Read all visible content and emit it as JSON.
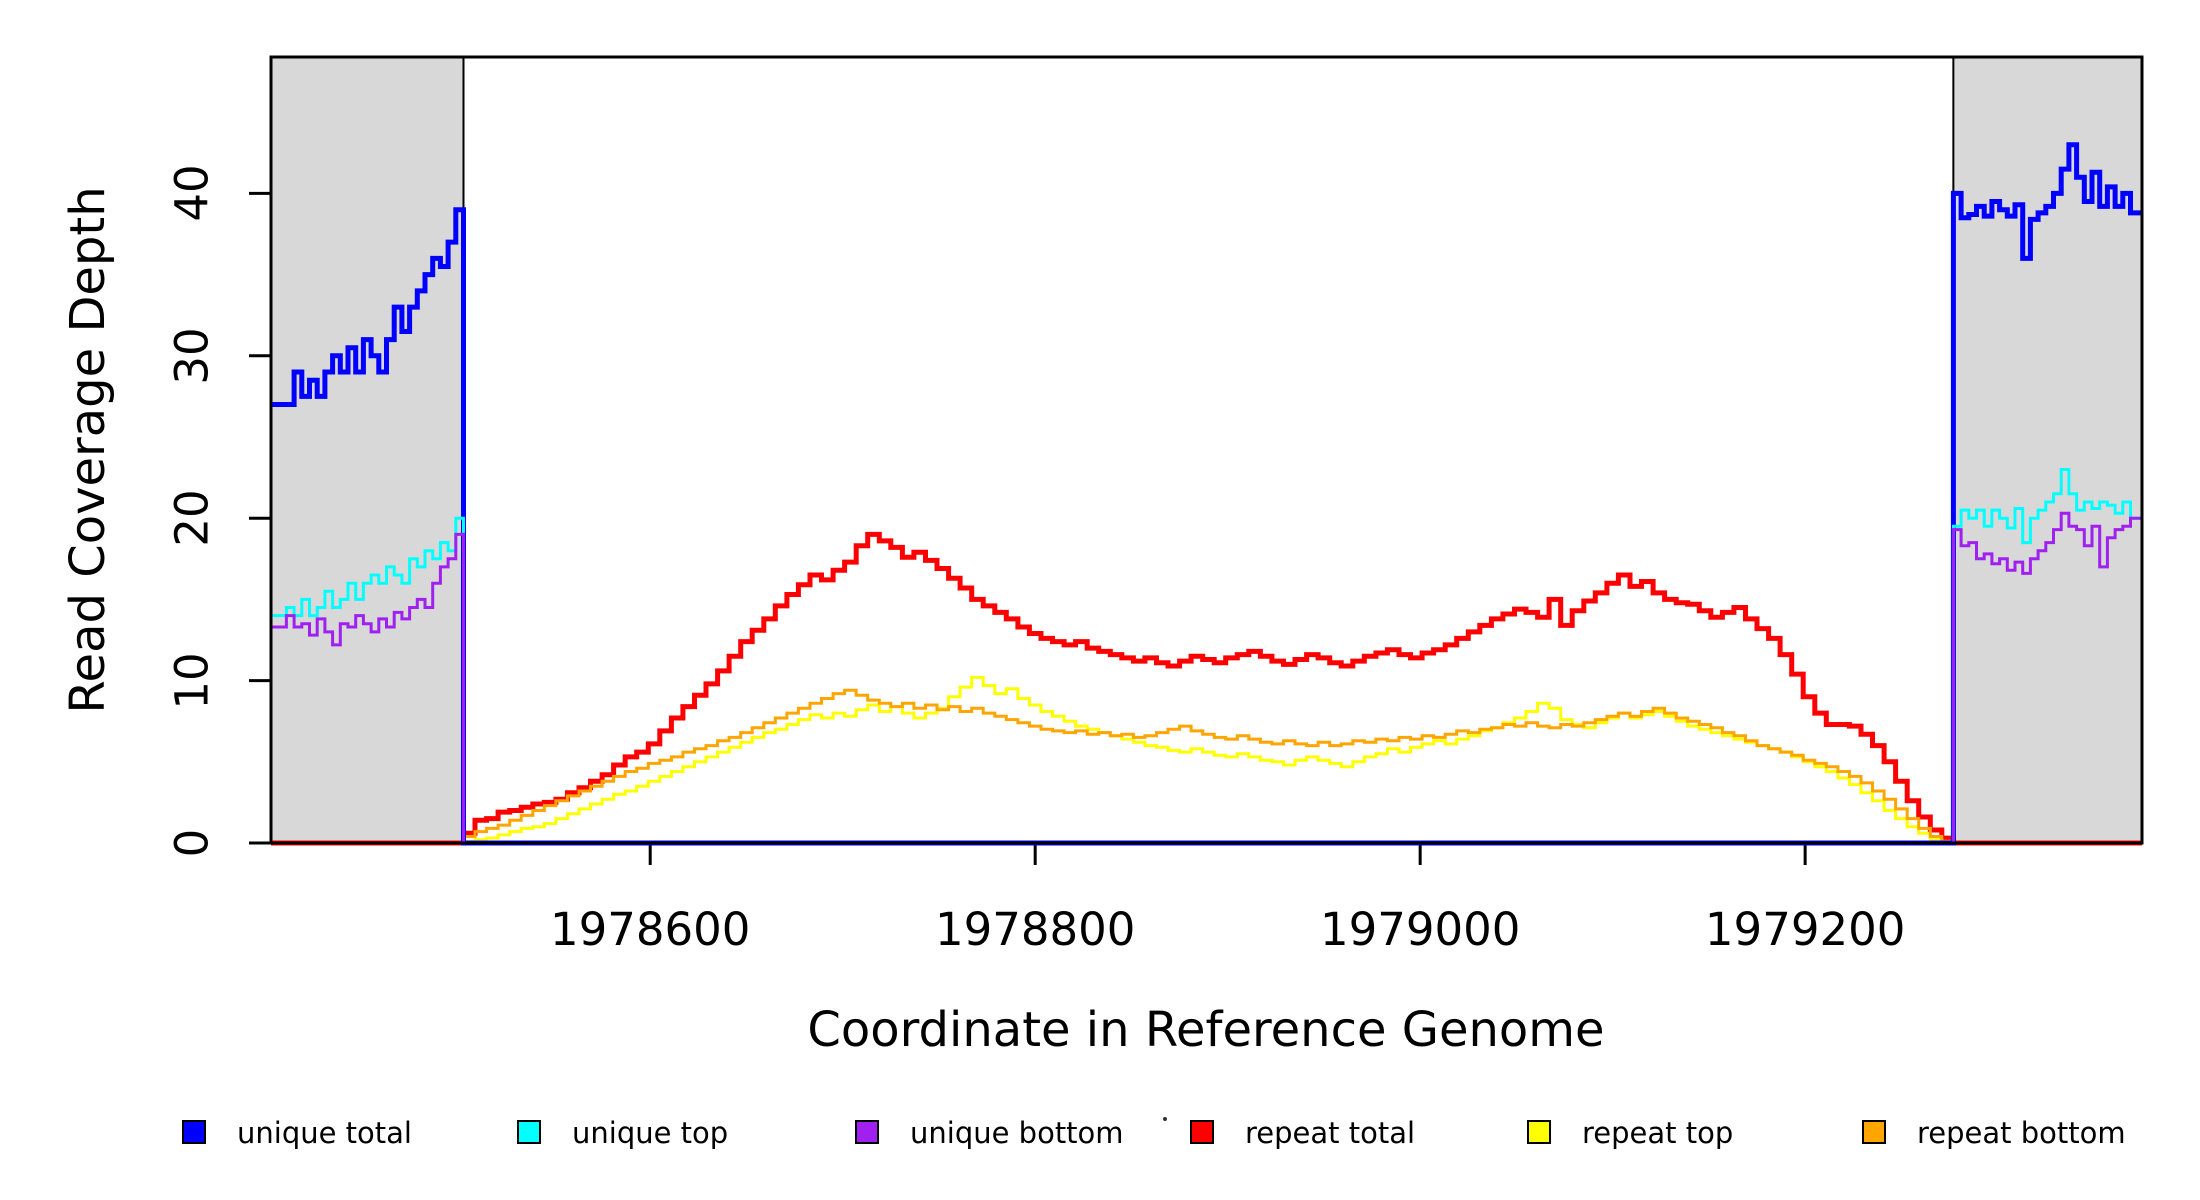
{
  "chart_data": {
    "type": "step-line",
    "title": "",
    "xlabel": "Coordinate in Reference Genome",
    "ylabel": "Read Coverage Depth",
    "xlim": [
      1978403,
      1979375
    ],
    "ylim": [
      0,
      48.4
    ],
    "x_ticks": [
      1978600,
      1978800,
      1979000,
      1979200
    ],
    "y_ticks": [
      0,
      10,
      20,
      30,
      40
    ],
    "grid": false,
    "legend_position": "bottom",
    "background": "#ffffff",
    "shaded_regions": [
      {
        "name": "unique-flank-left",
        "x0": 1978403,
        "x1": 1978503,
        "fill": "#D8D8D8",
        "border": "#000000"
      },
      {
        "name": "unique-flank-right",
        "x0": 1979277,
        "x1": 1979375,
        "fill": "#D8D8D8",
        "border": "#000000"
      }
    ],
    "series": [
      {
        "name": "repeat total",
        "color": "#FF0000",
        "width": 5,
        "segments": [
          {
            "x0": 1978403,
            "dx": 1,
            "values": [
              0
            ]
          },
          {
            "x0": 1978503,
            "dx": 6,
            "values": [
              0.6,
              1.4,
              1.5,
              1.9,
              2.0,
              2.2,
              2.4,
              2.5,
              2.7,
              3.1,
              3.4,
              3.8,
              4.2,
              4.8,
              5.3,
              5.6,
              6.1,
              6.9,
              7.7,
              8.4,
              9.1,
              9.8,
              10.6,
              11.5,
              12.4,
              13.1,
              13.8,
              14.6,
              15.3,
              15.9,
              16.5,
              16.2,
              16.8,
              17.3,
              18.3,
              19.0,
              18.6,
              18.2,
              17.6,
              17.9,
              17.4,
              16.9,
              16.3,
              15.7,
              15.0,
              14.6,
              14.2,
              13.8,
              13.3,
              12.9,
              12.6,
              12.4,
              12.2,
              12.4,
              12.0,
              11.8,
              11.6,
              11.4,
              11.2,
              11.4,
              11.1,
              10.9,
              11.2,
              11.5,
              11.3,
              11.1,
              11.4,
              11.6,
              11.8,
              11.5,
              11.2,
              11.0,
              11.3,
              11.6,
              11.4,
              11.1,
              10.9,
              11.2,
              11.5,
              11.7,
              11.9,
              11.6,
              11.4,
              11.7,
              11.9,
              12.2,
              12.6,
              13.0,
              13.4,
              13.8,
              14.1,
              14.4,
              14.2,
              13.9,
              15.0,
              13.4,
              14.3,
              14.9,
              15.4,
              16.0,
              16.5,
              15.8,
              16.1,
              15.4,
              15.0,
              14.8,
              14.7,
              14.3,
              13.9,
              14.2,
              14.5,
              13.8,
              13.2,
              12.6,
              11.6,
              10.4,
              9.0,
              8.0,
              7.3,
              7.3,
              7.2,
              6.7,
              6.0,
              5.0,
              3.8,
              2.6,
              1.6,
              0.8,
              0.3
            ]
          },
          {
            "x0": 1979277,
            "dx": 1,
            "values": [
              0
            ]
          }
        ]
      },
      {
        "name": "repeat top",
        "color": "#FFFF00",
        "width": 3,
        "segments": [
          {
            "x0": 1978403,
            "dx": 1,
            "values": [
              0
            ]
          },
          {
            "x0": 1978503,
            "dx": 6,
            "values": [
              0.1,
              0.2,
              0.3,
              0.5,
              0.7,
              0.9,
              1.0,
              1.2,
              1.5,
              1.8,
              2.1,
              2.4,
              2.7,
              3.0,
              3.2,
              3.5,
              3.8,
              4.1,
              4.4,
              4.7,
              5.0,
              5.3,
              5.6,
              5.9,
              6.2,
              6.5,
              6.8,
              7.0,
              7.3,
              7.6,
              7.9,
              7.7,
              8.0,
              7.8,
              8.2,
              8.5,
              8.1,
              8.4,
              8.0,
              7.7,
              8.0,
              8.3,
              9.0,
              9.6,
              10.2,
              9.7,
              9.2,
              9.5,
              8.9,
              8.5,
              8.1,
              7.8,
              7.5,
              7.2,
              7.0,
              6.8,
              6.6,
              6.4,
              6.2,
              6.0,
              5.9,
              5.7,
              5.6,
              5.8,
              5.6,
              5.4,
              5.3,
              5.5,
              5.3,
              5.1,
              5.0,
              4.8,
              5.1,
              5.3,
              5.1,
              4.9,
              4.7,
              5.0,
              5.3,
              5.5,
              5.8,
              5.6,
              5.9,
              6.1,
              6.3,
              6.1,
              6.4,
              6.6,
              6.9,
              7.1,
              7.4,
              7.7,
              8.1,
              8.6,
              8.3,
              7.6,
              7.3,
              7.1,
              7.4,
              7.7,
              8.0,
              7.7,
              7.9,
              8.1,
              7.8,
              7.5,
              7.2,
              7.0,
              6.8,
              6.6,
              6.4,
              6.2,
              6.0,
              5.8,
              5.6,
              5.3,
              5.0,
              4.7,
              4.4,
              4.0,
              3.6,
              3.1,
              2.6,
              2.0,
              1.5,
              1.0,
              0.6,
              0.2,
              0.1
            ]
          },
          {
            "x0": 1979277,
            "dx": 1,
            "values": [
              0
            ]
          }
        ]
      },
      {
        "name": "repeat bottom",
        "color": "#FFA500",
        "width": 3,
        "segments": [
          {
            "x0": 1978403,
            "dx": 1,
            "values": [
              0
            ]
          },
          {
            "x0": 1978503,
            "dx": 6,
            "values": [
              0.4,
              0.7,
              0.9,
              1.1,
              1.4,
              1.7,
              2.0,
              2.3,
              2.6,
              2.9,
              3.2,
              3.5,
              3.8,
              4.1,
              4.4,
              4.6,
              4.9,
              5.1,
              5.3,
              5.6,
              5.8,
              6.0,
              6.3,
              6.5,
              6.8,
              7.1,
              7.4,
              7.7,
              8.0,
              8.3,
              8.6,
              8.9,
              9.2,
              9.4,
              9.1,
              8.8,
              8.6,
              8.4,
              8.6,
              8.3,
              8.5,
              8.2,
              8.4,
              8.1,
              8.3,
              8.0,
              7.8,
              7.6,
              7.4,
              7.2,
              7.0,
              6.9,
              6.8,
              6.9,
              6.7,
              6.8,
              6.6,
              6.7,
              6.5,
              6.6,
              6.8,
              7.0,
              7.2,
              6.9,
              6.7,
              6.5,
              6.4,
              6.6,
              6.4,
              6.2,
              6.1,
              6.3,
              6.1,
              6.0,
              6.2,
              6.0,
              6.1,
              6.3,
              6.2,
              6.4,
              6.3,
              6.5,
              6.4,
              6.6,
              6.5,
              6.7,
              6.9,
              6.8,
              7.0,
              7.1,
              7.3,
              7.2,
              7.4,
              7.2,
              7.1,
              7.3,
              7.2,
              7.4,
              7.6,
              7.8,
              8.0,
              7.8,
              8.1,
              8.3,
              8.0,
              7.7,
              7.5,
              7.3,
              7.1,
              6.8,
              6.6,
              6.3,
              6.0,
              5.8,
              5.6,
              5.4,
              5.1,
              4.9,
              4.7,
              4.4,
              4.1,
              3.7,
              3.2,
              2.7,
              2.1,
              1.5,
              0.9,
              0.4,
              0.1
            ]
          },
          {
            "x0": 1979277,
            "dx": 1,
            "values": [
              0
            ]
          }
        ]
      },
      {
        "name": "unique total",
        "color": "#0000FF",
        "width": 5,
        "segments": [
          {
            "x0": 1978403,
            "dx": 4,
            "values": [
              27,
              27,
              27,
              29,
              27.5,
              28.5,
              27.5,
              29,
              30,
              29,
              30.5,
              29,
              31,
              30,
              29,
              31,
              33,
              31.5,
              33,
              34,
              35,
              36,
              35.5,
              37,
              39
            ]
          },
          {
            "x0": 1978503,
            "dx": 1,
            "values": [
              0
            ]
          },
          {
            "x0": 1979277,
            "dx": 4,
            "values": [
              40,
              38.5,
              38.7,
              39.2,
              38.6,
              39.5,
              39,
              38.6,
              39.3,
              36,
              38.4,
              38.8,
              39.2,
              40,
              41.5,
              43,
              41,
              39.5,
              41.3,
              39.2,
              40.4,
              39.2,
              40,
              38.8
            ]
          }
        ]
      },
      {
        "name": "unique top",
        "color": "#00FFFF",
        "width": 3,
        "segments": [
          {
            "x0": 1978403,
            "dx": 4,
            "values": [
              14,
              14,
              14.5,
              14,
              15,
              14,
              14.5,
              15.5,
              14.5,
              15,
              16,
              15,
              16,
              16.5,
              16,
              17,
              16.5,
              16,
              17.5,
              17,
              18,
              17.5,
              18.5,
              18,
              20
            ]
          },
          {
            "x0": 1978503,
            "dx": 1,
            "values": [
              0
            ]
          },
          {
            "x0": 1979277,
            "dx": 4,
            "values": [
              19.5,
              20.5,
              20,
              20.5,
              19.5,
              20.5,
              20,
              19.4,
              20.6,
              18.5,
              20,
              20.5,
              21,
              21.5,
              23,
              21.5,
              20.5,
              21,
              20.6,
              21,
              20.8,
              20.3,
              21,
              20
            ]
          }
        ]
      },
      {
        "name": "unique bottom",
        "color": "#A020F0",
        "width": 3,
        "segments": [
          {
            "x0": 1978403,
            "dx": 4,
            "values": [
              13.3,
              13.3,
              14,
              13.3,
              13.5,
              12.8,
              13.8,
              13,
              12.2,
              13.5,
              13.3,
              14,
              13.5,
              13,
              13.8,
              13.3,
              14.2,
              13.8,
              14.5,
              15,
              14.5,
              16,
              17,
              17.5,
              19
            ]
          },
          {
            "x0": 1978503,
            "dx": 1,
            "values": [
              0
            ]
          },
          {
            "x0": 1979277,
            "dx": 4,
            "values": [
              19.3,
              18.3,
              18.5,
              17.5,
              17.8,
              17.2,
              17.5,
              16.8,
              17.3,
              16.6,
              17.5,
              18,
              18.5,
              19.3,
              20.3,
              19.5,
              19.3,
              18.3,
              19.5,
              17,
              18.8,
              19.3,
              19.5,
              20
            ]
          }
        ]
      }
    ]
  },
  "legend": {
    "items": [
      {
        "label": "unique total",
        "color": "#0000FF"
      },
      {
        "label": "unique top",
        "color": "#00FFFF"
      },
      {
        "label": "unique bottom",
        "color": "#A020F0"
      },
      {
        "label": "repeat total",
        "color": "#FF0000"
      },
      {
        "label": "repeat top",
        "color": "#FFFF00"
      },
      {
        "label": "repeat bottom",
        "color": "#FFA500"
      }
    ]
  }
}
